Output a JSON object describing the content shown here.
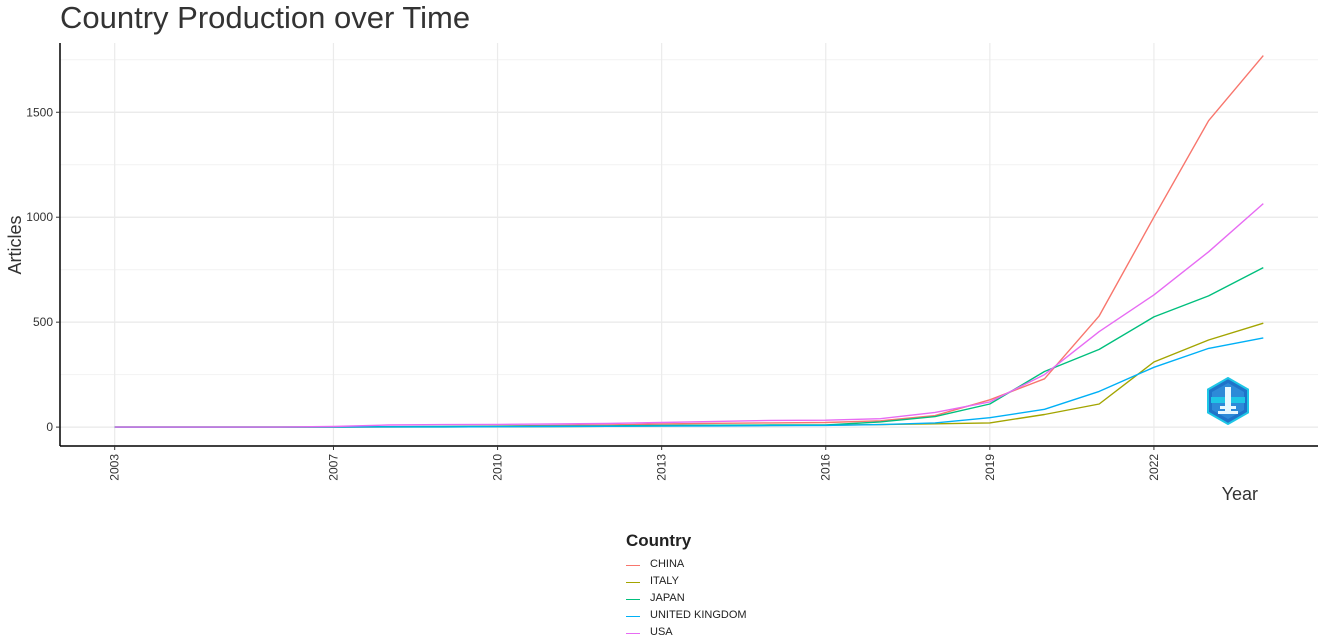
{
  "chart_data": {
    "type": "line",
    "title": "Country Production over Time",
    "xlabel": "Year",
    "ylabel": "Articles",
    "x_ticks": [
      2003,
      2007,
      2010,
      2013,
      2016,
      2019,
      2022
    ],
    "y_ticks": [
      0,
      500,
      1000,
      1500
    ],
    "xlim": [
      2002,
      2025
    ],
    "ylim": [
      -90,
      1830
    ],
    "grid": true,
    "legend_position": "bottom",
    "legend_title": "Country",
    "x": [
      2003,
      2004,
      2005,
      2006,
      2007,
      2008,
      2009,
      2010,
      2011,
      2012,
      2013,
      2014,
      2015,
      2016,
      2017,
      2018,
      2019,
      2020,
      2021,
      2022,
      2023,
      2024
    ],
    "series": [
      {
        "name": "CHINA",
        "color": "#F8766D",
        "values": [
          0,
          0,
          0,
          0,
          0,
          1,
          2,
          5,
          8,
          10,
          15,
          18,
          20,
          22,
          30,
          55,
          130,
          230,
          530,
          1000,
          1460,
          1770
        ]
      },
      {
        "name": "ITALY",
        "color": "#A3A500",
        "values": [
          0,
          0,
          0,
          0,
          0,
          1,
          1,
          2,
          3,
          4,
          6,
          7,
          8,
          9,
          12,
          16,
          20,
          60,
          110,
          310,
          415,
          495
        ]
      },
      {
        "name": "JAPAN",
        "color": "#00BF7D",
        "values": [
          0,
          0,
          0,
          0,
          1,
          2,
          3,
          4,
          5,
          6,
          8,
          9,
          10,
          10,
          25,
          50,
          110,
          265,
          370,
          525,
          625,
          760
        ]
      },
      {
        "name": "UNITED KINGDOM",
        "color": "#00B0F6",
        "values": [
          0,
          0,
          0,
          0,
          0,
          1,
          1,
          2,
          3,
          4,
          5,
          6,
          7,
          8,
          12,
          20,
          45,
          85,
          170,
          285,
          375,
          425
        ]
      },
      {
        "name": "USA",
        "color": "#E76BF3",
        "values": [
          0,
          0,
          0,
          0,
          3,
          10,
          12,
          13,
          15,
          17,
          22,
          27,
          32,
          33,
          40,
          70,
          120,
          250,
          455,
          630,
          835,
          1065
        ]
      }
    ]
  }
}
